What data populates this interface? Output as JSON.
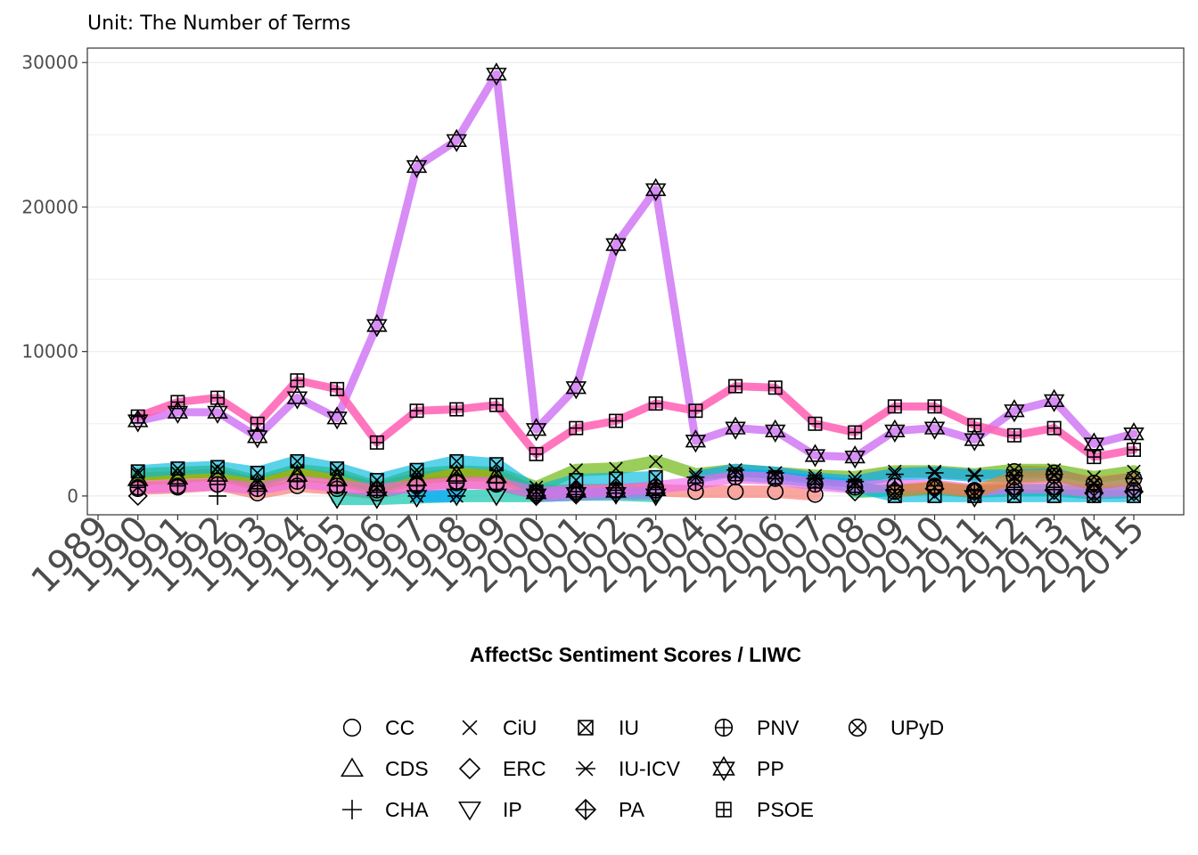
{
  "chart_data": {
    "type": "line",
    "subtitle": "Unit: The Number of Terms",
    "xlabel": "AffectSc Sentiment Scores / LIWC",
    "ylabel": "",
    "x": [
      "1989",
      "1990",
      "1991",
      "1992",
      "1993",
      "1994",
      "1995",
      "1996",
      "1997",
      "1998",
      "1999",
      "2000",
      "2001",
      "2002",
      "2003",
      "2004",
      "2005",
      "2006",
      "2007",
      "2008",
      "2009",
      "2010",
      "2011",
      "2012",
      "2013",
      "2014",
      "2015"
    ],
    "xlim": [
      "1989",
      "2015"
    ],
    "ylim": [
      -1300,
      31000
    ],
    "yticks": [
      0,
      10000,
      20000,
      30000
    ],
    "grid": true,
    "legend_position": "bottom",
    "series": [
      {
        "name": "CC",
        "marker": "circle",
        "color": "#F8766D",
        "values": [
          null,
          500,
          600,
          800,
          200,
          700,
          500,
          200,
          800,
          1000,
          800,
          200,
          300,
          400,
          400,
          300,
          300,
          300,
          100,
          null,
          null,
          null,
          null,
          1700,
          1600,
          null,
          null
        ]
      },
      {
        "name": "CDS",
        "marker": "triangle",
        "color": "#DB8E00",
        "values": [
          null,
          1200,
          1300,
          1500,
          800,
          1500,
          1200,
          500,
          1200,
          1500,
          1400,
          300,
          400,
          400,
          500,
          null,
          null,
          null,
          null,
          null,
          null,
          null,
          null,
          null,
          null,
          null,
          null
        ]
      },
      {
        "name": "CHA",
        "marker": "plus",
        "color": "#AEA200",
        "values": [
          null,
          null,
          null,
          0,
          null,
          null,
          null,
          null,
          null,
          null,
          null,
          null,
          null,
          null,
          null,
          null,
          null,
          null,
          null,
          null,
          null,
          null,
          null,
          null,
          null,
          null,
          null
        ]
      },
      {
        "name": "CiU",
        "marker": "cross",
        "color": "#64B200",
        "values": [
          null,
          1500,
          1600,
          1700,
          1000,
          1800,
          1500,
          600,
          1500,
          1700,
          1600,
          600,
          1800,
          1900,
          2400,
          1500,
          1800,
          1600,
          1400,
          1300,
          1700,
          1700,
          1500,
          1800,
          1800,
          1300,
          1700
        ]
      },
      {
        "name": "ERC",
        "marker": "diamond",
        "color": "#00BD5C",
        "values": [
          null,
          0,
          null,
          null,
          null,
          null,
          null,
          null,
          null,
          null,
          null,
          0,
          100,
          200,
          200,
          null,
          null,
          null,
          null,
          300,
          400,
          500,
          300,
          400,
          400,
          200,
          300
        ]
      },
      {
        "name": "IP",
        "marker": "triangle-down",
        "color": "#00C1A7",
        "values": [
          null,
          null,
          null,
          null,
          null,
          null,
          -200,
          -200,
          -100,
          0,
          0,
          0,
          100,
          100,
          0,
          null,
          null,
          null,
          null,
          null,
          null,
          null,
          -100,
          null,
          null,
          null,
          null
        ]
      },
      {
        "name": "IU",
        "marker": "square-x",
        "color": "#00BADE",
        "values": [
          null,
          1700,
          1900,
          2000,
          1600,
          2400,
          1900,
          1100,
          1800,
          2400,
          2200,
          300,
          1100,
          1200,
          1300,
          null,
          1500,
          1300,
          1000,
          700,
          0,
          0,
          0,
          0,
          0,
          0,
          0
        ]
      },
      {
        "name": "IU-ICV",
        "marker": "asterisk",
        "color": "#00A6FF",
        "values": [
          null,
          null,
          null,
          null,
          null,
          null,
          null,
          null,
          0,
          0,
          null,
          null,
          null,
          null,
          null,
          1300,
          1800,
          1600,
          1200,
          1000,
          1500,
          1600,
          1400,
          1400,
          1500,
          800,
          1200
        ]
      },
      {
        "name": "PA",
        "marker": "diamond-plus",
        "color": "#B385FF",
        "values": [
          null,
          null,
          null,
          null,
          null,
          null,
          null,
          null,
          null,
          null,
          null,
          0,
          100,
          200,
          200,
          null,
          null,
          null,
          null,
          null,
          null,
          null,
          null,
          null,
          null,
          null,
          null
        ]
      },
      {
        "name": "PNV",
        "marker": "circle-plus",
        "color": "#EF67EB",
        "values": [
          null,
          600,
          700,
          800,
          500,
          1000,
          700,
          400,
          700,
          900,
          900,
          200,
          300,
          400,
          600,
          900,
          1300,
          1200,
          800,
          600,
          700,
          700,
          400,
          600,
          600,
          300,
          400
        ]
      },
      {
        "name": "PP",
        "marker": "star-of-david",
        "color": "#D27CF5",
        "values": [
          null,
          5200,
          5800,
          5800,
          4100,
          6800,
          5400,
          11800,
          22800,
          24600,
          29200,
          4600,
          7500,
          17400,
          21200,
          3800,
          4700,
          4500,
          2800,
          2700,
          4500,
          4700,
          3900,
          5900,
          6600,
          3600,
          4300
        ]
      },
      {
        "name": "PSOE",
        "marker": "square-plus",
        "color": "#FF63B6",
        "values": [
          null,
          5500,
          6500,
          6800,
          5000,
          8000,
          7400,
          3700,
          5900,
          6000,
          6300,
          2900,
          4700,
          5200,
          6400,
          5900,
          7600,
          7500,
          5000,
          4400,
          6200,
          6200,
          4900,
          4200,
          4700,
          2700,
          3200
        ]
      },
      {
        "name": "UPyD",
        "marker": "circle-x",
        "color": "#E7861B",
        "values": [
          null,
          null,
          null,
          null,
          null,
          null,
          null,
          null,
          null,
          null,
          null,
          null,
          null,
          null,
          null,
          null,
          null,
          null,
          null,
          null,
          300,
          600,
          300,
          1300,
          1400,
          900,
          1200
        ]
      }
    ]
  }
}
